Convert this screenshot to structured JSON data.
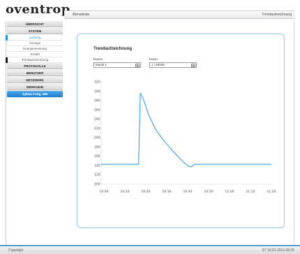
{
  "header": {
    "logo": "oventrop",
    "title": "Menuleiste",
    "right": "Trendaufzeichnung"
  },
  "sidebar": {
    "items": [
      {
        "label": "ÜBERSICHT",
        "kind": "section"
      },
      {
        "label": "SYSTEM",
        "kind": "section"
      },
      {
        "label": "Leistung",
        "kind": "active",
        "marker_color": "#2a8fd6"
      },
      {
        "label": "Anzeige",
        "kind": "plain"
      },
      {
        "label": "Energiemessung",
        "kind": "plain"
      },
      {
        "label": "Schaltt",
        "kind": "plain"
      },
      {
        "label": "Trendaufzeichnung",
        "kind": "plain",
        "marker_color": "#1a1a1a"
      },
      {
        "label": "PROTOKOLLE",
        "kind": "section"
      },
      {
        "label": "BENUTZER",
        "kind": "section"
      },
      {
        "label": "NETZWERK",
        "kind": "section"
      },
      {
        "label": "WERKSEIN",
        "kind": "section"
      },
      {
        "label": "Zyklus Freig. WB",
        "kind": "blue"
      }
    ]
  },
  "panel": {
    "title": "Trendaufzeichnung",
    "select1_label": "Datum",
    "select1_value": "Modul 1",
    "select2_label": "Daten",
    "select2_value": "1 / 60000"
  },
  "chart_data": {
    "type": "line",
    "title": "",
    "xlabel": "",
    "ylabel": "",
    "y_ticks": [
      "320",
      "300",
      "280",
      "260",
      "240",
      "220",
      "200",
      "180",
      "160",
      "140",
      "120",
      "100"
    ],
    "x_ticks": [
      "10:00",
      "10:10",
      "10:20",
      "10:30",
      "10:40",
      "10:50",
      "11:00",
      "11:10",
      "11:20"
    ],
    "ylim": [
      100,
      320
    ],
    "xlim": [
      0,
      100
    ],
    "series": [
      {
        "color": "#3a9ee0",
        "x": [
          0,
          22,
          23,
          25,
          28,
          32,
          37,
          42,
          47,
          51,
          53,
          55,
          60,
          70,
          100
        ],
        "y": [
          138,
          138,
          298,
          282,
          248,
          216,
          190,
          168,
          148,
          134,
          132,
          138,
          138,
          138,
          138
        ]
      }
    ]
  },
  "footer": {
    "left": "Copyright",
    "right": "ST 10.01.2014 08:25"
  }
}
